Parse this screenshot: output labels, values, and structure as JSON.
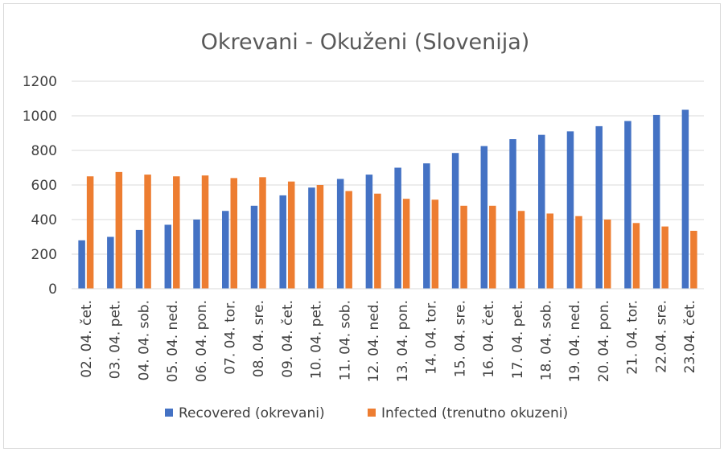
{
  "chart_data": {
    "type": "bar",
    "title": "Okrevani - Okuženi (Slovenija)",
    "xlabel": "",
    "ylabel": "",
    "ylim": [
      0,
      1200
    ],
    "yticks": [
      0,
      200,
      400,
      600,
      800,
      1000,
      1200
    ],
    "grid": true,
    "legend_position": "bottom",
    "categories": [
      "02. 04. čet.",
      "03. 04. pet.",
      "04. 04. sob.",
      "05. 04. ned.",
      "06. 04. pon.",
      "07. 04. tor.",
      "08. 04. sre.",
      "09. 04. čet.",
      "10. 04. pet.",
      "11. 04. sob.",
      "12. 04. ned.",
      "13. 04. pon.",
      "14. 04. tor.",
      "15. 04. sre.",
      "16. 04. čet.",
      "17. 04. pet.",
      "18. 04. sob.",
      "19. 04. ned.",
      "20. 04. pon.",
      "21. 04. tor.",
      "22.04. sre.",
      "23.04. čet."
    ],
    "series": [
      {
        "name": "Recovered (okrevani)",
        "color": "#4472c4",
        "values": [
          280,
          300,
          340,
          370,
          400,
          450,
          480,
          540,
          585,
          635,
          660,
          700,
          725,
          785,
          825,
          865,
          890,
          910,
          940,
          970,
          1005,
          1035
        ]
      },
      {
        "name": "Infected (trenutno okuzeni)",
        "color": "#ed7d31",
        "values": [
          650,
          675,
          660,
          650,
          655,
          640,
          645,
          620,
          600,
          565,
          550,
          520,
          515,
          480,
          480,
          450,
          435,
          420,
          400,
          380,
          360,
          335
        ]
      }
    ]
  }
}
